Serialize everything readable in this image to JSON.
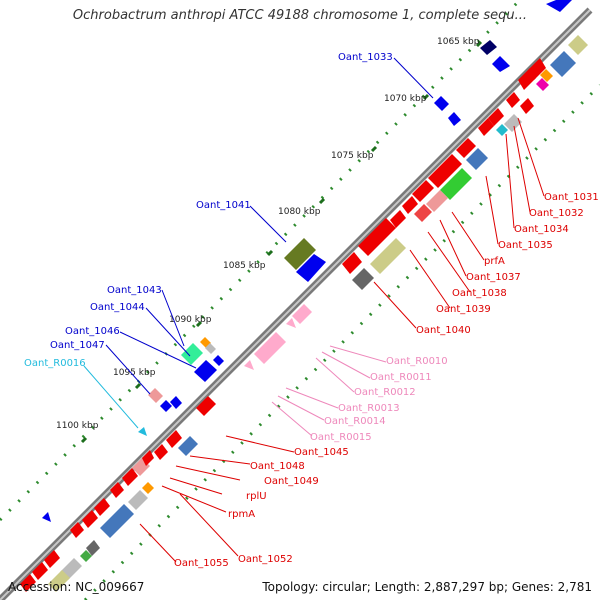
{
  "title": "Ochrobactrum anthropi ATCC 49188 chromosome 1, complete sequ...",
  "footer": {
    "accession": "Accession: NC_009667",
    "topology": "Topology: circular; Length: 2,887,297 bp; Genes: 2,781"
  },
  "colors": {
    "backbone": "#8c8c8c",
    "ticks": "#2e8b2e",
    "label_plus": "#0000cc",
    "label_minus": "#dd0000",
    "label_rna_minus": "#ee88bb",
    "label_rna_plus": "#22bbdd"
  },
  "scale_ticks": [
    {
      "label": "1065 kbp"
    },
    {
      "label": "1070 kbp"
    },
    {
      "label": "1075 kbp"
    },
    {
      "label": "1080 kbp"
    },
    {
      "label": "1085 kbp"
    },
    {
      "label": "1090 kbp"
    },
    {
      "label": "1095 kbp"
    },
    {
      "label": "1100 kbp"
    }
  ],
  "gene_labels_plus": [
    {
      "text": "Oant_1033",
      "color": "#0000cc"
    },
    {
      "text": "Oant_1041",
      "color": "#0000cc"
    },
    {
      "text": "Oant_1043",
      "color": "#0000cc"
    },
    {
      "text": "Oant_1044",
      "color": "#0000cc"
    },
    {
      "text": "Oant_1046",
      "color": "#0000cc"
    },
    {
      "text": "Oant_1047",
      "color": "#0000cc"
    },
    {
      "text": "Oant_R0016",
      "color": "#22bbdd"
    }
  ],
  "gene_labels_minus": [
    {
      "text": "Oant_1031",
      "color": "#dd0000"
    },
    {
      "text": "Oant_1032",
      "color": "#dd0000"
    },
    {
      "text": "Oant_1034",
      "color": "#dd0000"
    },
    {
      "text": "Oant_1035",
      "color": "#dd0000"
    },
    {
      "text": "prfA",
      "color": "#dd0000"
    },
    {
      "text": "Oant_1037",
      "color": "#dd0000"
    },
    {
      "text": "Oant_1038",
      "color": "#dd0000"
    },
    {
      "text": "Oant_1039",
      "color": "#dd0000"
    },
    {
      "text": "Oant_1040",
      "color": "#dd0000"
    },
    {
      "text": "Oant_R0010",
      "color": "#ee88bb"
    },
    {
      "text": "Oant_R0011",
      "color": "#ee88bb"
    },
    {
      "text": "Oant_R0012",
      "color": "#ee88bb"
    },
    {
      "text": "Oant_R0013",
      "color": "#ee88bb"
    },
    {
      "text": "Oant_R0014",
      "color": "#ee88bb"
    },
    {
      "text": "Oant_R0015",
      "color": "#ee88bb"
    },
    {
      "text": "Oant_1045",
      "color": "#dd0000"
    },
    {
      "text": "Oant_1048",
      "color": "#dd0000"
    },
    {
      "text": "Oant_1049",
      "color": "#dd0000"
    },
    {
      "text": "rplU",
      "color": "#dd0000"
    },
    {
      "text": "rpmA",
      "color": "#dd0000"
    },
    {
      "text": "Oant_1052",
      "color": "#dd0000"
    },
    {
      "text": "Oant_1055",
      "color": "#dd0000"
    }
  ]
}
